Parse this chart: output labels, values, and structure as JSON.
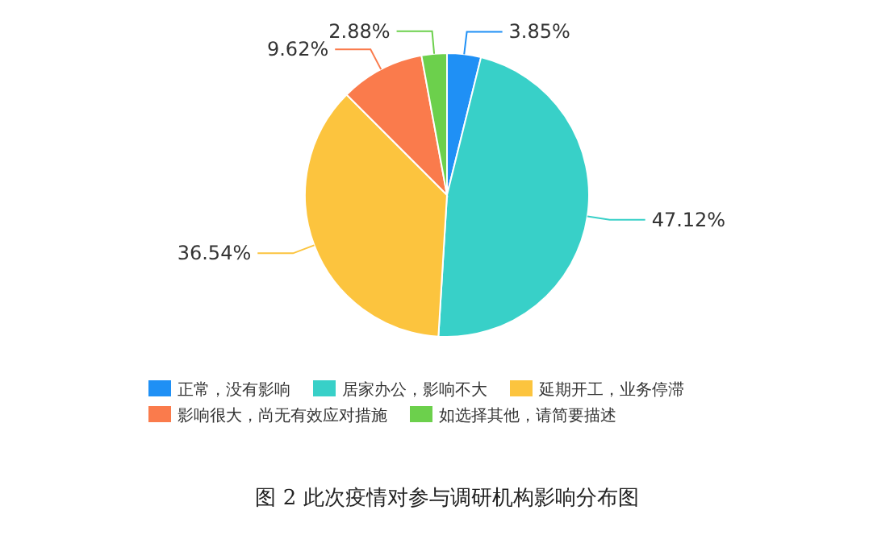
{
  "chart_data": {
    "type": "pie",
    "categories": [
      "正常，没有影响",
      "居家办公，影响不大",
      "延期开工，业务停滞",
      "影响很大，尚无有效应对措施",
      "如选择其他，请简要描述"
    ],
    "values": [
      3.85,
      47.12,
      36.54,
      9.62,
      2.88
    ],
    "value_labels": [
      "3.85%",
      "47.12%",
      "36.54%",
      "9.62%",
      "2.88%"
    ],
    "colors": [
      "#1f90f5",
      "#38d0c8",
      "#fcc43e",
      "#fa7b4c",
      "#6cd04c"
    ],
    "legend": "bottom",
    "annotations": [
      "图 2  此次疫情对参与调研机构影响分布图"
    ]
  }
}
